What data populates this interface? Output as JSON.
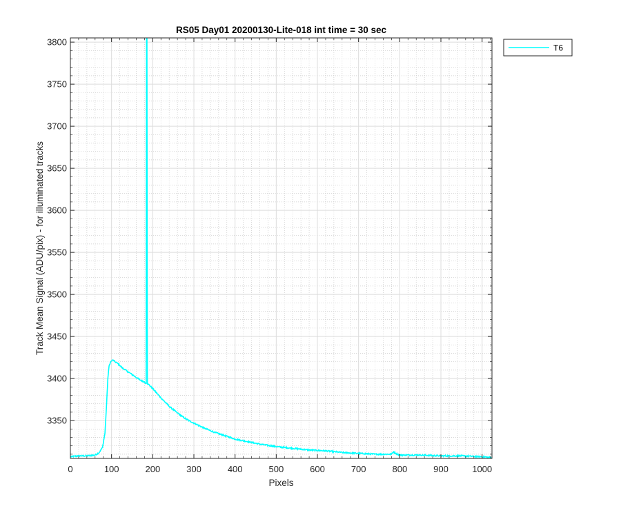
{
  "chart_data": {
    "type": "line",
    "title": "RS05 Day01 20200130-Lite-018 int time = 30 sec",
    "xlabel": "Pixels",
    "ylabel": "Track Mean Signal (ADU/pix) - for illuminated tracks",
    "xlim": [
      0,
      1024
    ],
    "ylim": [
      3305,
      3805
    ],
    "xticks": [
      0,
      100,
      200,
      300,
      400,
      500,
      600,
      700,
      800,
      900,
      1000
    ],
    "yticks": [
      3350,
      3400,
      3450,
      3500,
      3550,
      3600,
      3650,
      3700,
      3750,
      3800
    ],
    "grid": true,
    "minor_grid": true,
    "legend_position": "outside-top-right",
    "series": [
      {
        "name": "T6",
        "color": "#00ffff",
        "x": [
          0,
          20,
          40,
          60,
          70,
          78,
          84,
          88,
          91,
          94,
          97,
          100,
          104,
          108,
          115,
          125,
          140,
          155,
          170,
          180,
          184,
          185,
          186,
          187,
          188,
          190,
          200,
          220,
          240,
          260,
          280,
          300,
          325,
          350,
          375,
          400,
          430,
          460,
          500,
          540,
          580,
          620,
          660,
          700,
          740,
          780,
          785,
          790,
          800,
          850,
          900,
          950,
          1000,
          1023
        ],
        "y": [
          3307,
          3308,
          3308,
          3309,
          3312,
          3318,
          3335,
          3370,
          3400,
          3415,
          3419,
          3421,
          3422,
          3420,
          3418,
          3413,
          3408,
          3403,
          3398,
          3396,
          3394,
          3805,
          3805,
          3394,
          3393,
          3393,
          3388,
          3377,
          3367,
          3359,
          3352,
          3347,
          3341,
          3336,
          3332,
          3328,
          3325,
          3322,
          3319,
          3317,
          3315,
          3314,
          3312,
          3311,
          3310,
          3310,
          3313,
          3311,
          3309,
          3309,
          3308,
          3308,
          3307,
          3306
        ]
      }
    ]
  }
}
